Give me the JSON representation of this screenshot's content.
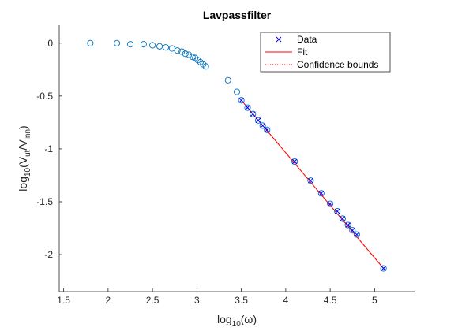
{
  "chart_data": {
    "type": "scatter",
    "title": "Lavpassfilter",
    "xlabel": {
      "base": "log",
      "sub": "10",
      "rest": "(ω)"
    },
    "ylabel": {
      "p1": "log",
      "s1": "10",
      "p2": "(V",
      "s2": "ut",
      "p3": "/V",
      "s3": "inn",
      "p4": ")"
    },
    "xlim": [
      1.45,
      5.45
    ],
    "ylim": [
      -2.35,
      0.17
    ],
    "xticks": [
      1.5,
      2,
      2.5,
      3,
      3.5,
      4,
      4.5,
      5
    ],
    "xtick_labels": [
      "1.5",
      "2",
      "2.5",
      "3",
      "3.5",
      "4",
      "4.5",
      "5"
    ],
    "yticks": [
      0,
      -0.5,
      -1,
      -1.5,
      -2
    ],
    "ytick_labels": [
      "0",
      "-0.5",
      "-1",
      "-1.5",
      "-2"
    ],
    "grid": false,
    "legend_position": "top-right",
    "colors": {
      "measured": "#0072BD",
      "data": "#0000FF",
      "fit": "#FF0000"
    },
    "series": [
      {
        "marker": "circle",
        "x": [
          1.8,
          2.1,
          2.25,
          2.4,
          2.5,
          2.58,
          2.65,
          2.72,
          2.78,
          2.83,
          2.87,
          2.91,
          2.95,
          2.98,
          3.01,
          3.04,
          3.07,
          3.1,
          3.35,
          3.45,
          3.5,
          3.57,
          3.63,
          3.69,
          3.74,
          3.79,
          4.1,
          4.28,
          4.4,
          4.5,
          4.58,
          4.64,
          4.7,
          4.75,
          4.8,
          5.1
        ],
        "y": [
          0.0,
          0.0,
          -0.01,
          -0.01,
          -0.02,
          -0.03,
          -0.04,
          -0.05,
          -0.07,
          -0.08,
          -0.1,
          -0.11,
          -0.13,
          -0.14,
          -0.16,
          -0.18,
          -0.2,
          -0.22,
          -0.35,
          -0.46,
          -0.54,
          -0.61,
          -0.67,
          -0.73,
          -0.78,
          -0.82,
          -1.12,
          -1.3,
          -1.42,
          -1.52,
          -1.59,
          -1.66,
          -1.72,
          -1.77,
          -1.81,
          -2.13
        ]
      },
      {
        "name": "Data",
        "marker": "x",
        "x": [
          3.5,
          3.57,
          3.63,
          3.69,
          3.74,
          3.79,
          4.1,
          4.28,
          4.4,
          4.5,
          4.58,
          4.64,
          4.7,
          4.75,
          4.8,
          5.1
        ],
        "y": [
          -0.54,
          -0.61,
          -0.67,
          -0.73,
          -0.78,
          -0.82,
          -1.12,
          -1.3,
          -1.42,
          -1.52,
          -1.59,
          -1.66,
          -1.72,
          -1.77,
          -1.81,
          -2.13
        ]
      },
      {
        "name": "Fit",
        "line": "solid",
        "x": [
          3.5,
          5.1
        ],
        "y": [
          -0.54,
          -2.13
        ]
      },
      {
        "name": "Confidence bounds",
        "line": "dotted",
        "x": [
          3.5,
          5.1
        ],
        "y": [
          -0.54,
          -2.13
        ]
      }
    ]
  }
}
